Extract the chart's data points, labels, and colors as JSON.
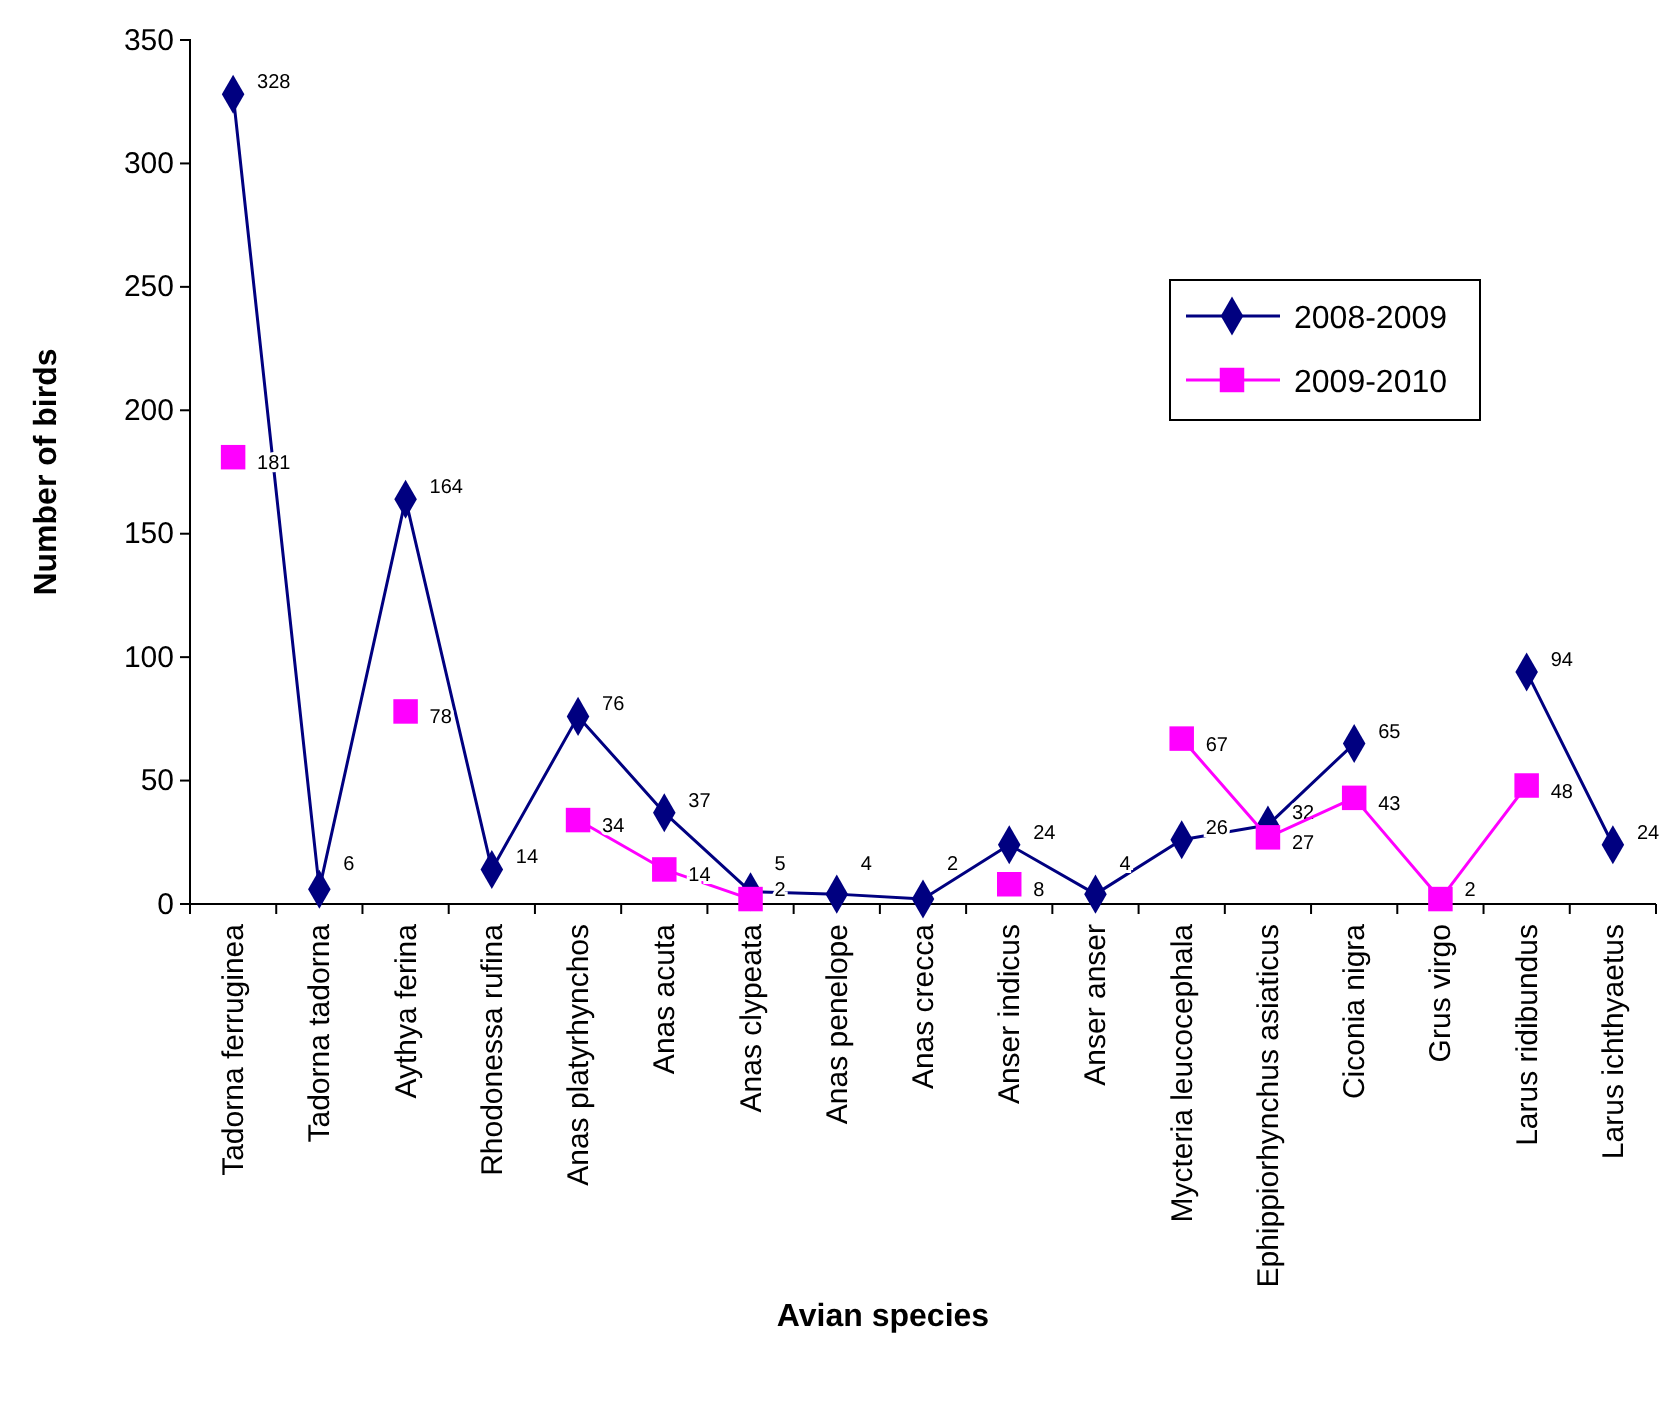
{
  "chart_data": {
    "type": "line",
    "xlabel": "Avian species",
    "ylabel": "Number of birds",
    "categories": [
      "Tadorna ferruginea",
      "Tadorna tadorna",
      "Aythya ferina",
      "Rhodonessa rufina",
      "Anas platyrhynchos",
      "Anas acuta",
      "Anas clypeata",
      "Anas penelope",
      "Anas crecca",
      "Anser indicus",
      "Anser anser",
      "Mycteria leucocephala",
      "Ephippiorhynchus asiaticus",
      "Ciconia nigra",
      "Grus virgo",
      "Larus ridibundus",
      "Larus ichthyaetus"
    ],
    "series": [
      {
        "name": "2008-2009",
        "color": "#000080",
        "marker": "diamond",
        "values": [
          328,
          6,
          164,
          14,
          76,
          37,
          5,
          4,
          2,
          24,
          4,
          26,
          32,
          65,
          null,
          94,
          24
        ]
      },
      {
        "name": "2009-2010",
        "color": "#ff00ff",
        "marker": "square",
        "values": [
          181,
          null,
          78,
          null,
          34,
          14,
          2,
          null,
          null,
          8,
          null,
          67,
          27,
          43,
          2,
          48,
          null
        ]
      }
    ],
    "ylim": [
      0,
      350
    ],
    "yticks": [
      0,
      50,
      100,
      150,
      200,
      250,
      300,
      350
    ],
    "grid": false,
    "legend": "top right",
    "data_labels": true
  }
}
